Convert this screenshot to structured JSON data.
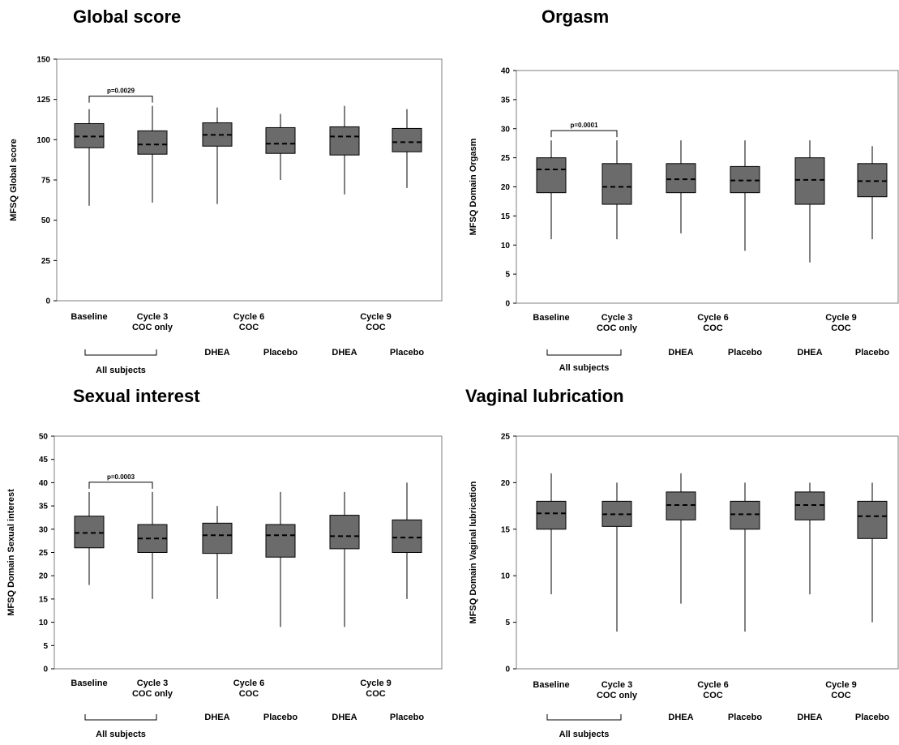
{
  "colors": {
    "box_fill": "#6b6b6b",
    "stroke": "#000000",
    "frame": "#7f7f7f",
    "median": "#000000",
    "background": "#ffffff"
  },
  "chart_data": [
    {
      "type": "boxplot",
      "title": "Global score",
      "ylabel": "MFSQ Global score",
      "ylim": [
        0,
        150
      ],
      "yticks": [
        0,
        25,
        50,
        75,
        100,
        125,
        150
      ],
      "x_labels": [
        "Baseline",
        "Cycle 3\nCOC only",
        "Cycle 6\nCOC",
        "Cycle 9\nCOC"
      ],
      "sub_labels": [
        "DHEA",
        "Placebo",
        "DHEA",
        "Placebo"
      ],
      "group_label": "All subjects",
      "bracket": {
        "label": "p=0.0029",
        "from": 0,
        "to": 1
      },
      "series": [
        {
          "group": "Baseline",
          "min": 59,
          "q1": 95,
          "median": 102,
          "q3": 110,
          "max": 119
        },
        {
          "group": "Cycle 3 COC only",
          "min": 61,
          "q1": 91,
          "median": 97,
          "q3": 105.5,
          "max": 121
        },
        {
          "group": "Cycle 6 COC DHEA",
          "min": 60,
          "q1": 96,
          "median": 103,
          "q3": 110.5,
          "max": 120
        },
        {
          "group": "Cycle 6 COC Placebo",
          "min": 75,
          "q1": 91.5,
          "median": 97.5,
          "q3": 107.5,
          "max": 116
        },
        {
          "group": "Cycle 9 COC DHEA",
          "min": 66,
          "q1": 90.5,
          "median": 102,
          "q3": 108,
          "max": 121
        },
        {
          "group": "Cycle 9 COC Placebo",
          "min": 70,
          "q1": 92.5,
          "median": 98.5,
          "q3": 107,
          "max": 119
        }
      ]
    },
    {
      "type": "boxplot",
      "title": "Orgasm",
      "ylabel": "MFSQ Domain Orgasm",
      "ylim": [
        0,
        40
      ],
      "yticks": [
        0,
        5,
        10,
        15,
        20,
        25,
        30,
        35,
        40
      ],
      "x_labels": [
        "Baseline",
        "Cycle 3\nCOC only",
        "Cycle 6\nCOC",
        "Cycle 9\nCOC"
      ],
      "sub_labels": [
        "DHEA",
        "Placebo",
        "DHEA",
        "Placebo"
      ],
      "group_label": "All subjects",
      "bracket": {
        "label": "p=0.0001",
        "from": 0,
        "to": 1
      },
      "series": [
        {
          "group": "Baseline",
          "min": 11,
          "q1": 19,
          "median": 23,
          "q3": 25,
          "max": 28
        },
        {
          "group": "Cycle 3 COC only",
          "min": 11,
          "q1": 17,
          "median": 20,
          "q3": 24,
          "max": 28
        },
        {
          "group": "Cycle 6 COC DHEA",
          "min": 12,
          "q1": 19,
          "median": 21.3,
          "q3": 24,
          "max": 28
        },
        {
          "group": "Cycle 6 COC Placebo",
          "min": 9,
          "q1": 19,
          "median": 21.1,
          "q3": 23.5,
          "max": 28
        },
        {
          "group": "Cycle 9 COC DHEA",
          "min": 7,
          "q1": 17,
          "median": 21.2,
          "q3": 25,
          "max": 28
        },
        {
          "group": "Cycle 9 COC Placebo",
          "min": 11,
          "q1": 18.3,
          "median": 21,
          "q3": 24,
          "max": 27
        }
      ]
    },
    {
      "type": "boxplot",
      "title": "Sexual interest",
      "ylabel": "MFSQ Domain Sexual interest",
      "ylim": [
        0,
        50
      ],
      "yticks": [
        0,
        5,
        10,
        15,
        20,
        25,
        30,
        35,
        40,
        45,
        50
      ],
      "x_labels": [
        "Baseline",
        "Cycle 3\nCOC only",
        "Cycle 6\nCOC",
        "Cycle 9\nCOC"
      ],
      "sub_labels": [
        "DHEA",
        "Placebo",
        "DHEA",
        "Placebo"
      ],
      "group_label": "All subjects",
      "bracket": {
        "label": "p=0.0003",
        "from": 0,
        "to": 1
      },
      "series": [
        {
          "group": "Baseline",
          "min": 18,
          "q1": 26,
          "median": 29.2,
          "q3": 32.8,
          "max": 38
        },
        {
          "group": "Cycle 3 COC only",
          "min": 15,
          "q1": 25,
          "median": 28,
          "q3": 31,
          "max": 38
        },
        {
          "group": "Cycle 6 COC DHEA",
          "min": 15,
          "q1": 24.8,
          "median": 28.7,
          "q3": 31.3,
          "max": 35
        },
        {
          "group": "Cycle 6 COC Placebo",
          "min": 9,
          "q1": 24,
          "median": 28.7,
          "q3": 31,
          "max": 38
        },
        {
          "group": "Cycle 9 COC DHEA",
          "min": 9,
          "q1": 25.8,
          "median": 28.5,
          "q3": 33,
          "max": 38
        },
        {
          "group": "Cycle 9 COC Placebo",
          "min": 15,
          "q1": 25,
          "median": 28.2,
          "q3": 32,
          "max": 40
        }
      ]
    },
    {
      "type": "boxplot",
      "title": "Vaginal lubrication",
      "ylabel": "MFSQ Domain Vaginal lubrication",
      "ylim": [
        0,
        25
      ],
      "yticks": [
        0,
        5,
        10,
        15,
        20,
        25
      ],
      "x_labels": [
        "Baseline",
        "Cycle 3\nCOC only",
        "Cycle 6\nCOC",
        "Cycle 9\nCOC"
      ],
      "sub_labels": [
        "DHEA",
        "Placebo",
        "DHEA",
        "Placebo"
      ],
      "group_label": "All subjects",
      "bracket": null,
      "series": [
        {
          "group": "Baseline",
          "min": 8,
          "q1": 15,
          "median": 16.7,
          "q3": 18,
          "max": 21
        },
        {
          "group": "Cycle 3 COC only",
          "min": 4,
          "q1": 15.3,
          "median": 16.6,
          "q3": 18,
          "max": 20
        },
        {
          "group": "Cycle 6 COC DHEA",
          "min": 7,
          "q1": 16,
          "median": 17.6,
          "q3": 19,
          "max": 21
        },
        {
          "group": "Cycle 6 COC Placebo",
          "min": 4,
          "q1": 15,
          "median": 16.6,
          "q3": 18,
          "max": 20
        },
        {
          "group": "Cycle 9 COC DHEA",
          "min": 8,
          "q1": 16,
          "median": 17.6,
          "q3": 19,
          "max": 20
        },
        {
          "group": "Cycle 9 COC Placebo",
          "min": 5,
          "q1": 14,
          "median": 16.4,
          "q3": 18,
          "max": 20
        }
      ]
    }
  ]
}
